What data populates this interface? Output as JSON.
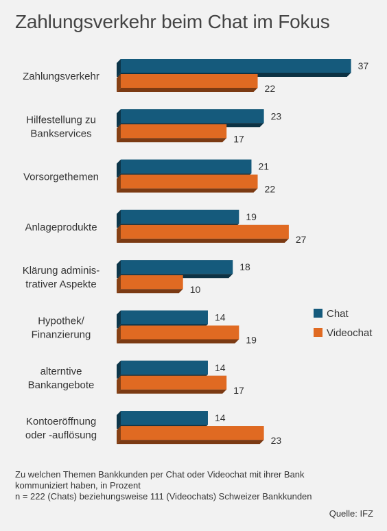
{
  "chart_data": {
    "type": "bar",
    "orientation": "horizontal",
    "title": "Zahlungsverkehr beim Chat im Fokus",
    "categories": [
      [
        "Zahlungsverkehr"
      ],
      [
        "Hilfestellung zu",
        "Bankservices"
      ],
      [
        "Vorsorgethemen"
      ],
      [
        "Anlageprodukte"
      ],
      [
        "Klärung adminis-",
        "trativer Aspekte"
      ],
      [
        "Hypothek/",
        "Finanzierung"
      ],
      [
        "alterntive",
        "Bankangebote"
      ],
      [
        "Kontoeröffnung",
        "oder -auflösung"
      ]
    ],
    "series": [
      {
        "name": "Chat",
        "values": [
          37,
          23,
          21,
          19,
          18,
          14,
          14,
          14
        ],
        "color": "#155a7c"
      },
      {
        "name": "Videochat",
        "values": [
          22,
          17,
          22,
          27,
          10,
          19,
          17,
          23
        ],
        "color": "#e06a22"
      }
    ],
    "xlim": [
      0,
      37
    ],
    "legend_position": "right",
    "grid": false,
    "bar_style": "3d"
  },
  "footnote": {
    "line1": "Zu welchen Themen Bankkunden per Chat oder Videochat mit ihrer Bank",
    "line2": "kommuniziert haben, in Prozent",
    "line3": "n = 222 (Chats) beziehungsweise 111 (Videochats) Schweizer Bankkunden"
  },
  "source": "Quelle: IFZ"
}
